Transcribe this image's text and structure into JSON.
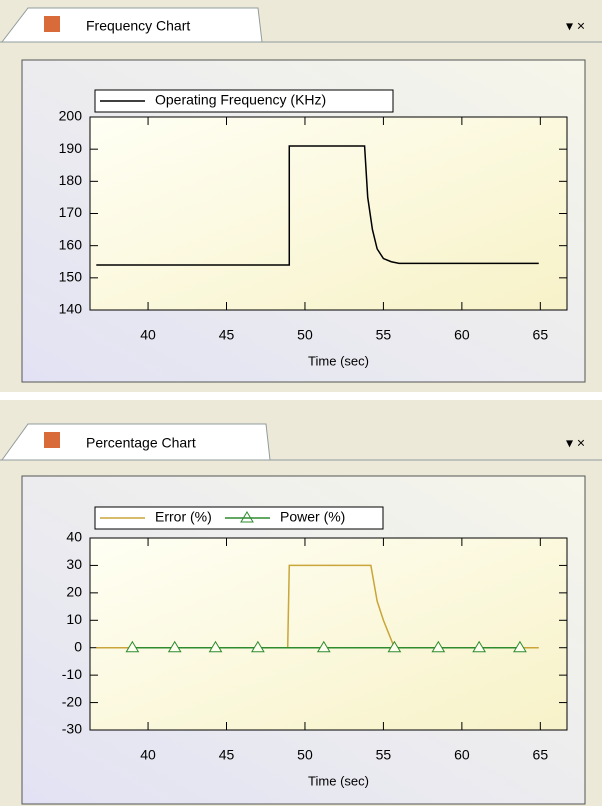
{
  "panels": [
    {
      "tab": "Frequency Chart"
    },
    {
      "tab": "Percentage Chart"
    }
  ],
  "chart_data": [
    {
      "type": "line",
      "xlabel": "Time (sec)",
      "series": [
        {
          "name": "Operating Frequency (KHz)",
          "color": "#000000",
          "x": [
            36.7,
            49,
            49,
            53.8,
            54,
            54.3,
            54.6,
            55,
            55.5,
            56,
            64.9
          ],
          "values": [
            154,
            154,
            191,
            191,
            175,
            165,
            159,
            156,
            155,
            154.5,
            154.5
          ]
        }
      ],
      "xlim": [
        36.3,
        66.7
      ],
      "xticks": [
        40,
        45,
        50,
        55,
        60,
        65
      ],
      "ylim": [
        140,
        200
      ],
      "yticks": [
        140,
        150,
        160,
        170,
        180,
        190,
        200
      ]
    },
    {
      "type": "line",
      "xlabel": "Time (sec)",
      "series": [
        {
          "name": "Error (%)",
          "color": "#c9a53a",
          "marker": "none",
          "x": [
            36.7,
            48.9,
            49,
            54.2,
            54.6,
            55,
            55.7,
            64.9
          ],
          "values": [
            0,
            0,
            30,
            30,
            17,
            10,
            0,
            0
          ]
        },
        {
          "name": "Power (%)",
          "color": "#2e8b2e",
          "marker": "triangle",
          "x": [
            39,
            41.7,
            44.3,
            47,
            51.2,
            55.7,
            58.5,
            61.1,
            63.7
          ],
          "values": [
            0,
            0,
            0,
            0,
            0,
            0,
            0,
            0,
            0
          ]
        }
      ],
      "xlim": [
        36.3,
        66.7
      ],
      "xticks": [
        40,
        45,
        50,
        55,
        60,
        65
      ],
      "ylim": [
        -30,
        40
      ],
      "yticks": [
        -30,
        -20,
        -10,
        0,
        10,
        20,
        30,
        40
      ]
    }
  ]
}
